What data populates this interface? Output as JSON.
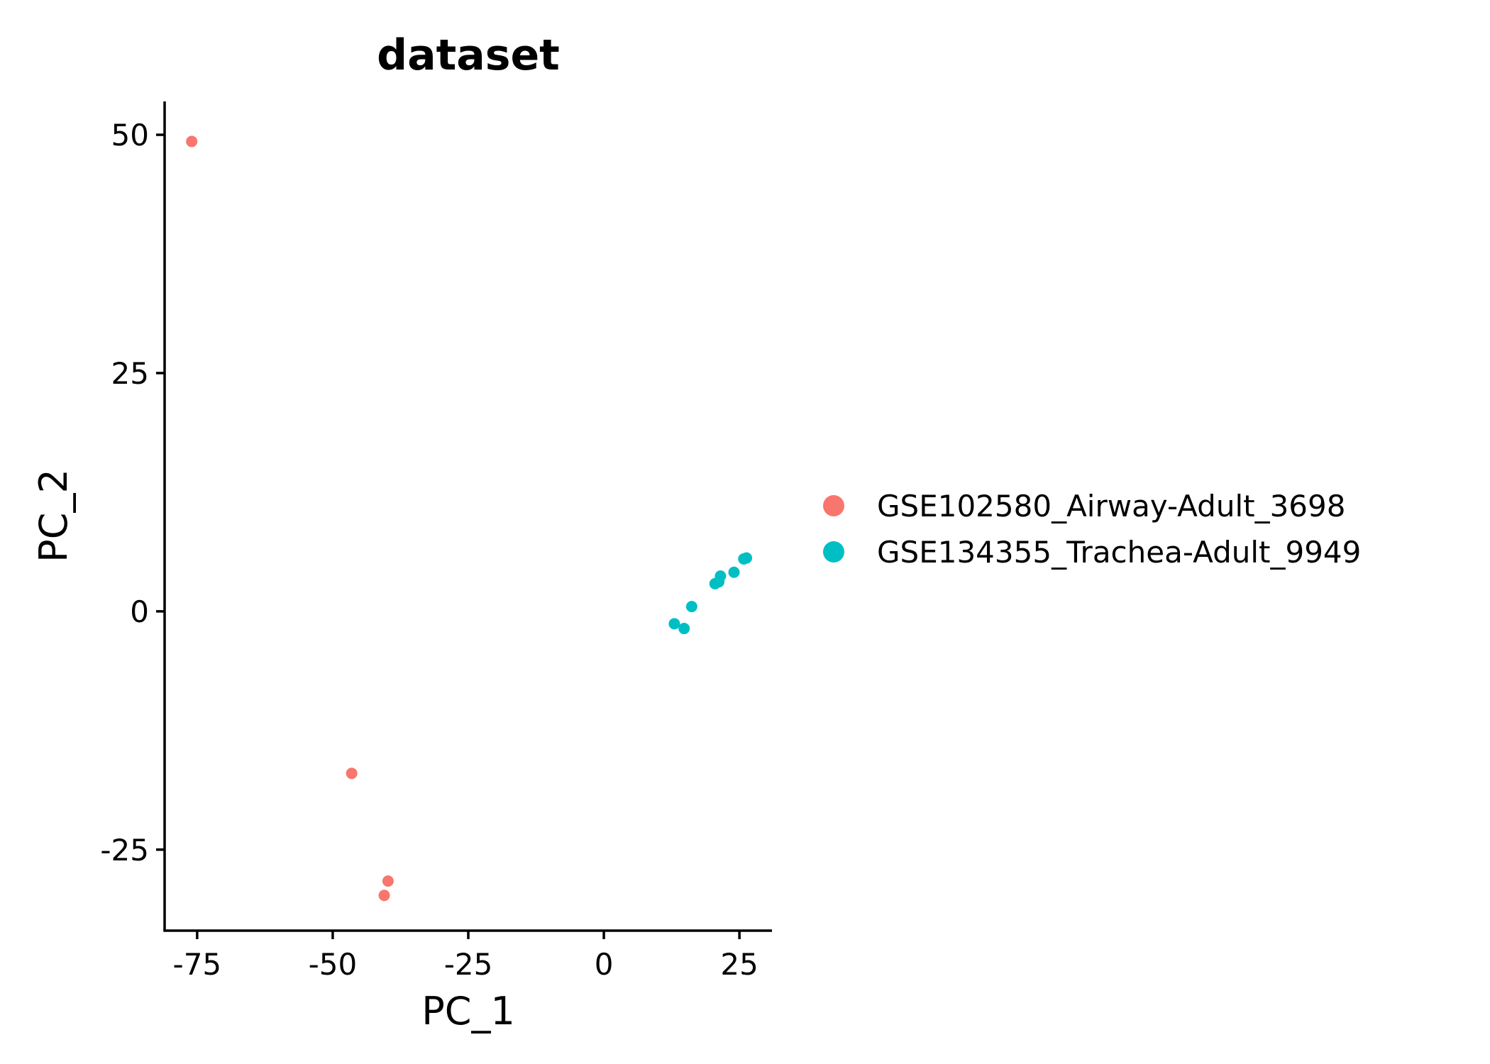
{
  "chart_data": {
    "type": "scatter",
    "title": "dataset",
    "xlabel": "PC_1",
    "ylabel": "PC_2",
    "xlim": [
      -81,
      31
    ],
    "ylim": [
      -33.5,
      53.5
    ],
    "x_ticks": [
      -75,
      -50,
      -25,
      0,
      25
    ],
    "x_tick_labels": [
      "-75",
      "-50",
      "-25",
      "0",
      "25"
    ],
    "y_ticks": [
      -25,
      0,
      25,
      50
    ],
    "y_tick_labels": [
      "-25",
      "0",
      "25",
      "50"
    ],
    "grid": false,
    "legend_position": "right",
    "series": [
      {
        "name": "GSE102580_Airway-Adult_3698",
        "color": "#F8766D",
        "points": [
          {
            "x": -76,
            "y": 49.3
          },
          {
            "x": -46.5,
            "y": -17
          },
          {
            "x": -39.8,
            "y": -28.3
          },
          {
            "x": -40.5,
            "y": -29.8
          }
        ]
      },
      {
        "name": "GSE134355_Trachea-Adult_9949",
        "color": "#00BFC4",
        "points": [
          {
            "x": 13,
            "y": -1.3
          },
          {
            "x": 14.8,
            "y": -1.8
          },
          {
            "x": 16.2,
            "y": 0.5
          },
          {
            "x": 20.5,
            "y": 2.9
          },
          {
            "x": 21.2,
            "y": 3.1
          },
          {
            "x": 21.5,
            "y": 3.7
          },
          {
            "x": 24,
            "y": 4.1
          },
          {
            "x": 25.8,
            "y": 5.5
          },
          {
            "x": 26.3,
            "y": 5.6
          }
        ]
      }
    ]
  }
}
